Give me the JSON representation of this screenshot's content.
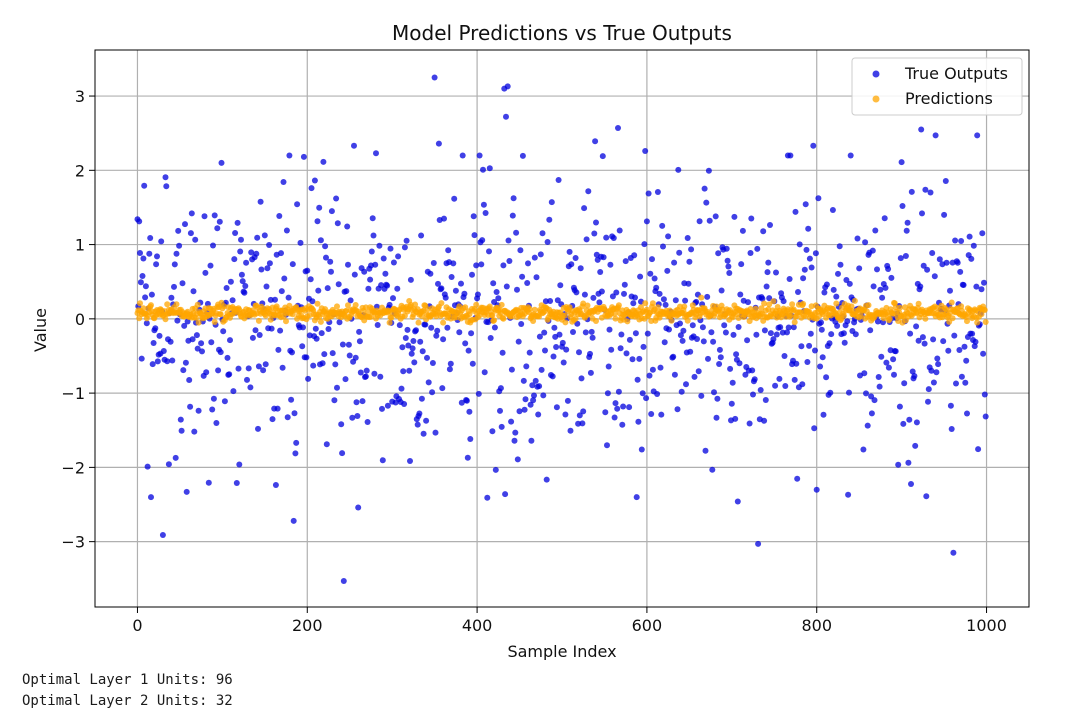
{
  "chart_data": {
    "type": "scatter",
    "title": "Model Predictions vs True Outputs",
    "xlabel": "Sample Index",
    "ylabel": "Value",
    "xlim": [
      -50,
      1050
    ],
    "ylim": [
      -3.88,
      3.62
    ],
    "xticks": [
      0,
      200,
      400,
      600,
      800,
      1000
    ],
    "xtick_labels": [
      "0",
      "200",
      "400",
      "600",
      "800",
      "1000"
    ],
    "yticks": [
      -3,
      -2,
      -1,
      0,
      1,
      2,
      3
    ],
    "ytick_labels": [
      "−3",
      "−2",
      "−1",
      "0",
      "1",
      "2",
      "3"
    ],
    "grid": true,
    "legend": "top-right",
    "n_points": 1000,
    "series": [
      {
        "name": "True Outputs",
        "color": "#0000dd",
        "alpha": 0.75,
        "distribution": "standard normal, one value per sample index 0-999",
        "notable_values": [
          {
            "x": 350,
            "y": 3.25
          },
          {
            "x": 432,
            "y": 3.1
          },
          {
            "x": 436,
            "y": 3.13
          },
          {
            "x": 434,
            "y": 2.72
          },
          {
            "x": 566,
            "y": 2.57
          },
          {
            "x": 923,
            "y": 2.55
          },
          {
            "x": 989,
            "y": 2.47
          },
          {
            "x": 940,
            "y": 2.47
          },
          {
            "x": 255,
            "y": 2.33
          },
          {
            "x": 355,
            "y": 2.36
          },
          {
            "x": 539,
            "y": 2.39
          },
          {
            "x": 796,
            "y": 2.33
          },
          {
            "x": 598,
            "y": 2.26
          },
          {
            "x": 281,
            "y": 2.23
          },
          {
            "x": 196,
            "y": 2.18
          },
          {
            "x": 99,
            "y": 2.1
          },
          {
            "x": 900,
            "y": 2.11
          },
          {
            "x": 30,
            "y": -2.91
          },
          {
            "x": 184,
            "y": -2.72
          },
          {
            "x": 243,
            "y": -3.53
          },
          {
            "x": 731,
            "y": -3.03
          },
          {
            "x": 961,
            "y": -3.15
          },
          {
            "x": 260,
            "y": -2.54
          },
          {
            "x": 707,
            "y": -2.46
          },
          {
            "x": 929,
            "y": -2.39
          },
          {
            "x": 433,
            "y": -2.36
          },
          {
            "x": 412,
            "y": -2.41
          },
          {
            "x": 58,
            "y": -2.33
          },
          {
            "x": 12,
            "y": -1.99
          },
          {
            "x": 117,
            "y": -2.21
          }
        ]
      },
      {
        "name": "Predictions",
        "color": "#ffa500",
        "alpha": 0.75,
        "distribution": "approximately 0.08 with spread about 0.06 (range -0.05 to 0.3), one value per sample index 0-999"
      }
    ]
  },
  "console": {
    "line1": "Optimal Layer 1 Units: 96",
    "line2": "Optimal Layer 2 Units: 32"
  }
}
